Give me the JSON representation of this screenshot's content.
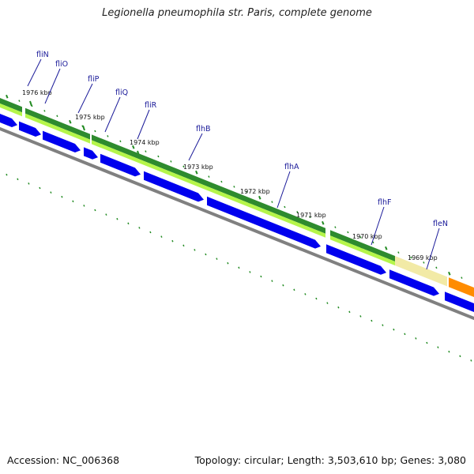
{
  "title": "Legionella pneumophila str. Paris, complete genome",
  "footer": {
    "accession": "Accession: NC_006368",
    "stats": "Topology: circular; Length: 3,503,610 bp; Genes: 3,080"
  },
  "genes": [
    "fliN",
    "fliO",
    "fliP",
    "fliQ",
    "fliR",
    "flhB",
    "flhA",
    "flhF",
    "fleN"
  ],
  "positions": [
    "1976 kbp",
    "1975 kbp",
    "1974 kbp",
    "1973 kbp",
    "1972 kbp",
    "1971 kbp",
    "1970 kbp",
    "1969 kbp"
  ],
  "colors": {
    "forward_gene": "#0000ee",
    "cds_dark": "#2e8b2e",
    "cds_light": "#b5f54a",
    "cds_pale": "#f2eaa6",
    "cds_orange": "#ff8c00",
    "backbone": "#808080",
    "ticks": "#228b22",
    "label": "#1a1a99"
  }
}
